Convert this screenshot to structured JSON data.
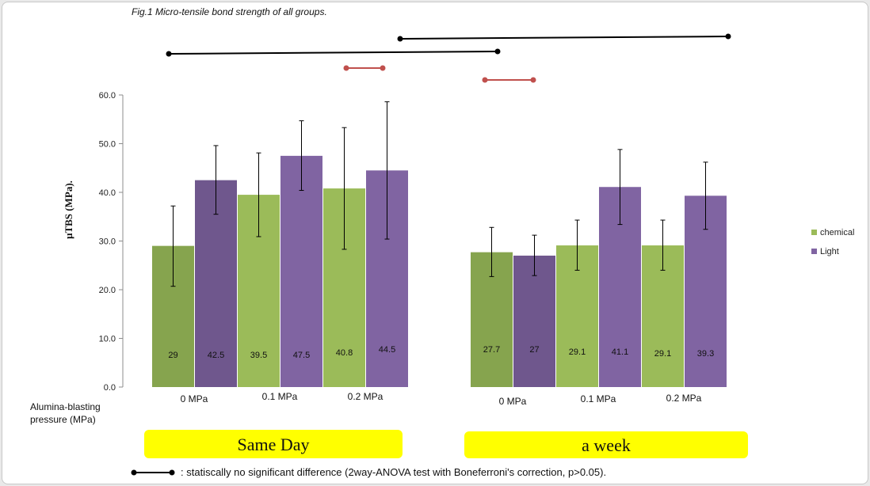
{
  "figure_title": "Fig.1 Micro-tensile bond strength  of all groups.",
  "chart_data": {
    "type": "bar",
    "title": "Fig.1 Micro-tensile bond strength  of all groups.",
    "ylabel": "μTBS (MPa).",
    "xlabel_lines": [
      "Alumina-blasting",
      "pressure (MPa)"
    ],
    "ylim": [
      0,
      60
    ],
    "yticks": [
      "0.0",
      "10.0",
      "20.0",
      "30.0",
      "40.0",
      "50.0",
      "60.0"
    ],
    "grid": false,
    "legend_position": "right",
    "groups": [
      {
        "name": "Same Day",
        "categories": [
          "0 MPa",
          "0.1 MPa",
          "0.2 MPa"
        ],
        "series": [
          {
            "name": "chemical",
            "values": [
              29,
              39.5,
              40.8
            ],
            "labels": [
              "29",
              "39.5",
              "40.8"
            ],
            "error_low": [
              20.7,
              30.9,
              28.3
            ],
            "error_high": [
              37.2,
              48.1,
              53.3
            ]
          },
          {
            "name": "Light",
            "values": [
              42.5,
              47.5,
              44.5
            ],
            "labels": [
              "42.5",
              "47.5",
              "44.5"
            ],
            "error_low": [
              35.5,
              40.4,
              30.4
            ],
            "error_high": [
              49.6,
              54.7,
              58.6
            ]
          }
        ]
      },
      {
        "name": "a week",
        "categories": [
          "0 MPa",
          "0.1 MPa",
          "0.2 MPa"
        ],
        "series": [
          {
            "name": "chemical",
            "values": [
              27.7,
              29.1,
              29.1
            ],
            "labels": [
              "27.7",
              "29.1",
              "29.1"
            ],
            "error_low": [
              22.7,
              24.0,
              24.0
            ],
            "error_high": [
              32.8,
              34.3,
              34.3
            ]
          },
          {
            "name": "Light",
            "values": [
              27,
              41.1,
              39.3
            ],
            "labels": [
              "27",
              "41.1",
              "39.3"
            ],
            "error_low": [
              22.9,
              33.4,
              32.4
            ],
            "error_high": [
              31.2,
              48.8,
              46.2
            ]
          }
        ]
      }
    ],
    "legend": [
      {
        "name": "chemical",
        "color": "#9bbb59"
      },
      {
        "name": "Light",
        "color": "#8064a2"
      }
    ],
    "footnote": ": statiscally no significant difference (2way-ANOVA test with Boneferroni's  correction,  p>0.05)."
  },
  "colors": {
    "chemical": "#9bbb59",
    "chemical_dark": "#86a44e",
    "light": "#8064a2",
    "light_dark": "#6f578d",
    "group_box": "#ffff00",
    "sig_black": "#000000",
    "sig_red": "#c0504d"
  }
}
